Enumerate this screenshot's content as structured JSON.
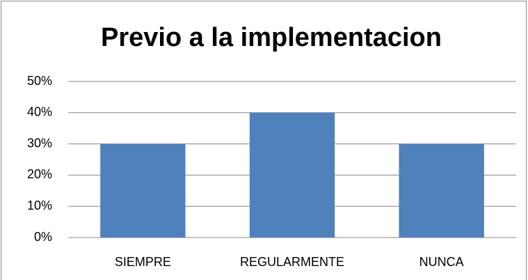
{
  "chart_data": {
    "type": "bar",
    "title": "Previo a la implementacion",
    "categories": [
      "SIEMPRE",
      "REGULARMENTE",
      "NUNCA"
    ],
    "values": [
      30,
      40,
      30
    ],
    "color": "#4f81bd",
    "ylim": [
      0,
      50
    ],
    "yticks": [
      {
        "value": 0,
        "label": "0%"
      },
      {
        "value": 10,
        "label": "10%"
      },
      {
        "value": 20,
        "label": "20%"
      },
      {
        "value": 30,
        "label": "30%"
      },
      {
        "value": 40,
        "label": "40%"
      },
      {
        "value": 50,
        "label": "50%"
      }
    ],
    "grid": true
  }
}
